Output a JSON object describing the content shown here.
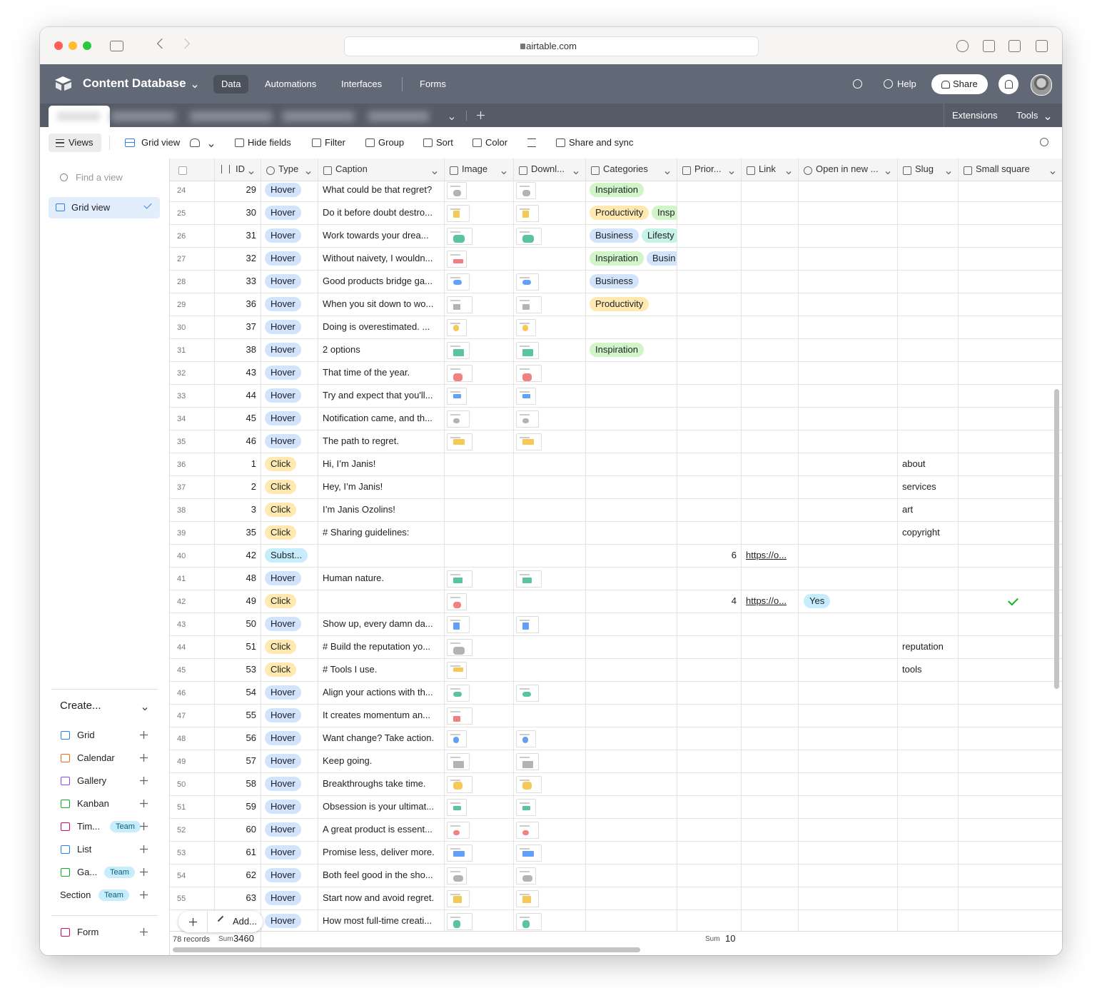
{
  "browser": {
    "url": "airtable.com"
  },
  "header": {
    "title": "Content Database",
    "tabs": [
      "Data",
      "Automations",
      "Interfaces",
      "Forms"
    ],
    "help": "Help",
    "share": "Share"
  },
  "tabbar": {
    "extensions": "Extensions",
    "tools": "Tools"
  },
  "toolbar": {
    "views": "Views",
    "view_name": "Grid view",
    "buttons": [
      "Hide fields",
      "Filter",
      "Group",
      "Sort",
      "Color",
      "Share and sync"
    ]
  },
  "sidebar": {
    "search_placeholder": "Find a view",
    "views": [
      "Grid view"
    ],
    "create_label": "Create...",
    "create_items": [
      {
        "label": "Grid"
      },
      {
        "label": "Calendar"
      },
      {
        "label": "Gallery"
      },
      {
        "label": "Kanban"
      },
      {
        "label": "Tim...",
        "badge": "Team"
      },
      {
        "label": "List"
      },
      {
        "label": "Ga...",
        "badge": "Team"
      },
      {
        "label": "Section",
        "badge": "Team"
      },
      {
        "label": "Form"
      }
    ]
  },
  "table": {
    "columns": [
      "ID",
      "Type",
      "Caption",
      "Image",
      "Downl...",
      "Categories",
      "Prior...",
      "Link",
      "Open in new ...",
      "Slug",
      "Small square"
    ],
    "choice_colors": {
      "Hover": "#d2e3fc",
      "Click": "#ffe9b0",
      "Subst...": "#c7ecfb",
      "Inspiration": "#d1f5c8",
      "Productivity": "#ffe9b0",
      "Insp": "#d1f5c8",
      "Business": "#d2e3fc",
      "Lifesty": "#c6f2e8",
      "Busin": "#d2e3fc",
      "Yes": "#c7ecfb"
    },
    "rows": [
      {
        "n": 24,
        "id": 29,
        "type": "Hover",
        "caption": "What could be that regret?",
        "image": true,
        "download": true,
        "categories": [
          "Inspiration"
        ]
      },
      {
        "n": 25,
        "id": 30,
        "type": "Hover",
        "caption": "Do it before doubt destro...",
        "image": true,
        "download": true,
        "categories": [
          "Productivity",
          "Insp"
        ]
      },
      {
        "n": 26,
        "id": 31,
        "type": "Hover",
        "caption": "Work towards your drea...",
        "image": true,
        "download": true,
        "categories": [
          "Business",
          "Lifesty"
        ]
      },
      {
        "n": 27,
        "id": 32,
        "type": "Hover",
        "caption": "Without naivety, I wouldn...",
        "image": true,
        "download": false,
        "categories": [
          "Inspiration",
          "Busin"
        ]
      },
      {
        "n": 28,
        "id": 33,
        "type": "Hover",
        "caption": "Good products bridge ga...",
        "image": true,
        "download": true,
        "categories": [
          "Business"
        ]
      },
      {
        "n": 29,
        "id": 36,
        "type": "Hover",
        "caption": "When you sit down to wo...",
        "image": true,
        "download": true,
        "categories": [
          "Productivity"
        ]
      },
      {
        "n": 30,
        "id": 37,
        "type": "Hover",
        "caption": "Doing is overestimated. ...",
        "image": true,
        "download": true
      },
      {
        "n": 31,
        "id": 38,
        "type": "Hover",
        "caption": "2 options",
        "image": true,
        "download": true,
        "categories": [
          "Inspiration"
        ]
      },
      {
        "n": 32,
        "id": 43,
        "type": "Hover",
        "caption": "That time of the year.",
        "image": true,
        "download": true
      },
      {
        "n": 33,
        "id": 44,
        "type": "Hover",
        "caption": "Try and expect that you'll...",
        "image": true,
        "download": true
      },
      {
        "n": 34,
        "id": 45,
        "type": "Hover",
        "caption": "Notification came, and th...",
        "image": true,
        "download": true
      },
      {
        "n": 35,
        "id": 46,
        "type": "Hover",
        "caption": "The path to regret.",
        "image": true,
        "download": true
      },
      {
        "n": 36,
        "id": 1,
        "type": "Click",
        "caption": "Hi, I’m Janis!",
        "slug": "about"
      },
      {
        "n": 37,
        "id": 2,
        "type": "Click",
        "caption": "Hey, I’m Janis!",
        "slug": "services"
      },
      {
        "n": 38,
        "id": 3,
        "type": "Click",
        "caption": "I’m Janis Ozolins!",
        "slug": "art"
      },
      {
        "n": 39,
        "id": 35,
        "type": "Click",
        "caption": "# Sharing guidelines:",
        "slug": "copyright"
      },
      {
        "n": 40,
        "id": 42,
        "type": "Subst...",
        "priority": 6,
        "link": "https://o..."
      },
      {
        "n": 41,
        "id": 48,
        "type": "Hover",
        "caption": "Human nature.",
        "image": true,
        "download": true
      },
      {
        "n": 42,
        "id": 49,
        "type": "Click",
        "image": true,
        "priority": 4,
        "link": "https://o...",
        "open": "Yes",
        "checked": true
      },
      {
        "n": 43,
        "id": 50,
        "type": "Hover",
        "caption": "Show up, every damn da...",
        "image": true,
        "download": true
      },
      {
        "n": 44,
        "id": 51,
        "type": "Click",
        "caption": "# Build the reputation yo...",
        "image": true,
        "slug": "reputation"
      },
      {
        "n": 45,
        "id": 53,
        "type": "Click",
        "caption": "# Tools I use.",
        "image": true,
        "slug": "tools"
      },
      {
        "n": 46,
        "id": 54,
        "type": "Hover",
        "caption": "Align your actions with th...",
        "image": true,
        "download": true
      },
      {
        "n": 47,
        "id": 55,
        "type": "Hover",
        "caption": "It creates momentum an...",
        "image": true
      },
      {
        "n": 48,
        "id": 56,
        "type": "Hover",
        "caption": "Want change? Take action.",
        "image": true,
        "download": true
      },
      {
        "n": 49,
        "id": 57,
        "type": "Hover",
        "caption": "Keep going.",
        "image": true,
        "download": true
      },
      {
        "n": 50,
        "id": 58,
        "type": "Hover",
        "caption": "Breakthroughs take time.",
        "image": true,
        "download": true
      },
      {
        "n": 51,
        "id": 59,
        "type": "Hover",
        "caption": "Obsession is your ultimat...",
        "image": true,
        "download": true
      },
      {
        "n": 52,
        "id": 60,
        "type": "Hover",
        "caption": "A great product is essent...",
        "image": true,
        "download": true
      },
      {
        "n": 53,
        "id": 61,
        "type": "Hover",
        "caption": "Promise less, deliver more.",
        "image": true,
        "download": true
      },
      {
        "n": 54,
        "id": 62,
        "type": "Hover",
        "caption": "Both feel good in the sho...",
        "image": true,
        "download": true
      },
      {
        "n": 55,
        "id": 63,
        "type": "Hover",
        "caption": "Start now and avoid regret.",
        "image": true,
        "download": true
      },
      {
        "n": null,
        "id": null,
        "type": "Hover",
        "caption": "How most full-time creati...",
        "image": true,
        "download": true
      }
    ],
    "footer": {
      "records": "78 records",
      "id_sum_label": "Sum",
      "id_sum": 3460,
      "priority_sum_label": "Sum",
      "priority_sum": 10,
      "add_button": "Add..."
    }
  }
}
